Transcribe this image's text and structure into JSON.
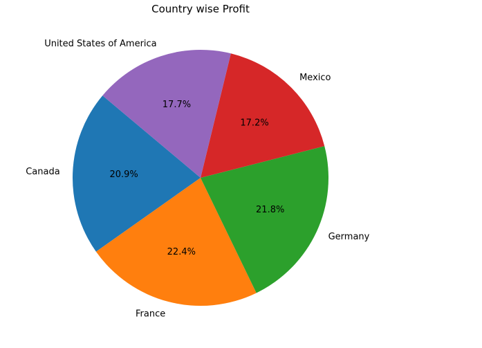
{
  "chart_data": {
    "type": "pie",
    "title": "Country wise Profit",
    "categories": [
      "Canada",
      "France",
      "Germany",
      "Mexico",
      "United States of America"
    ],
    "values": [
      20.9,
      22.4,
      21.8,
      17.2,
      17.7
    ],
    "value_labels": [
      "20.9%",
      "22.4%",
      "21.8%",
      "17.2%",
      "17.7%"
    ],
    "colors": [
      "#1f77b4",
      "#ff7f0e",
      "#2ca02c",
      "#d62728",
      "#9467bd"
    ],
    "start_angle_deg": 140,
    "direction": "counterclockwise",
    "legend": "none"
  }
}
